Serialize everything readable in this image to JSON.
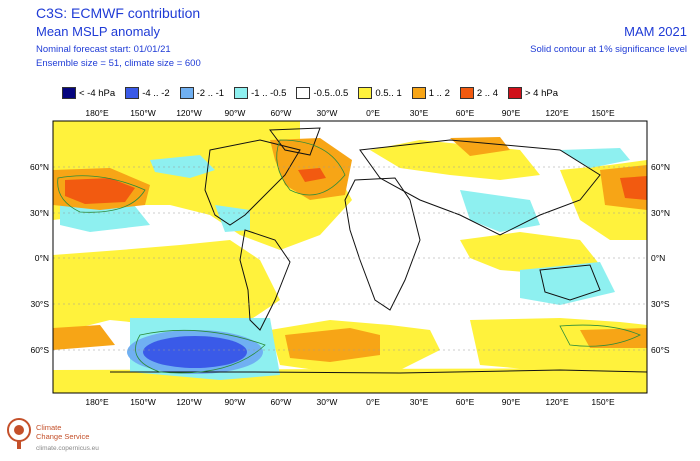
{
  "header": {
    "title": "C3S: ECMWF contribution",
    "subtitle": "Mean MSLP anomaly",
    "forecast_start": "Nominal forecast start: 01/01/21",
    "ensemble": "Ensemble size = 51, climate size = 600",
    "period": "MAM 2021",
    "significance_note": "Solid contour at 1% significance level"
  },
  "legend": [
    {
      "label": "< -4 hPa",
      "color": "#06057e"
    },
    {
      "label": "-4 .. -2",
      "color": "#3a5ae8"
    },
    {
      "label": "-2 .. -1",
      "color": "#70b0f2"
    },
    {
      "label": "-1 .. -0.5",
      "color": "#8ef0f0"
    },
    {
      "label": "-0.5..0.5",
      "color": "#ffffff"
    },
    {
      "label": "0.5.. 1",
      "color": "#fff23c"
    },
    {
      "label": "1 .. 2",
      "color": "#f7a516"
    },
    {
      "label": "2 .. 4",
      "color": "#f25a10"
    },
    {
      "label": "> 4 hPa",
      "color": "#d0101a"
    }
  ],
  "map": {
    "lon_labels": [
      "180°E",
      "150°W",
      "120°W",
      "90°W",
      "60°W",
      "30°W",
      "0°E",
      "30°E",
      "60°E",
      "90°E",
      "120°E",
      "150°E"
    ],
    "lat_labels": [
      "60°N",
      "30°N",
      "0°N",
      "30°S",
      "60°S"
    ]
  },
  "logo": {
    "line1": "Climate",
    "line2": "Change Service",
    "url": "climate.copernicus.eu"
  }
}
